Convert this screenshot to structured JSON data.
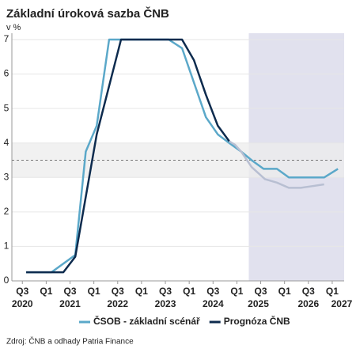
{
  "chart_data": {
    "type": "line",
    "title": "Základní úroková sazba ČNB",
    "subtitle": "v %",
    "source": "Zdroj: ČNB a odhady Patria Finance",
    "xlim": [
      2020.28,
      2027.25
    ],
    "xticks": [
      {
        "value": 2020.5,
        "label": "Q3"
      },
      {
        "value": 2021.0,
        "label": "Q1"
      },
      {
        "value": 2021.5,
        "label": "Q3"
      },
      {
        "value": 2022.0,
        "label": "Q1"
      },
      {
        "value": 2022.5,
        "label": "Q3"
      },
      {
        "value": 2023.0,
        "label": "Q1"
      },
      {
        "value": 2023.5,
        "label": "Q3"
      },
      {
        "value": 2024.0,
        "label": "Q1"
      },
      {
        "value": 2024.5,
        "label": "Q3"
      },
      {
        "value": 2025.0,
        "label": "Q1"
      },
      {
        "value": 2025.5,
        "label": "Q3"
      },
      {
        "value": 2026.0,
        "label": "Q1"
      },
      {
        "value": 2026.5,
        "label": "Q3"
      },
      {
        "value": 2027.0,
        "label": "Q1"
      }
    ],
    "year_labels": [
      {
        "value": 2020.5,
        "label": "2020"
      },
      {
        "value": 2021.5,
        "label": "2021"
      },
      {
        "value": 2022.5,
        "label": "2022"
      },
      {
        "value": 2023.5,
        "label": "2023"
      },
      {
        "value": 2024.5,
        "label": "2024"
      },
      {
        "value": 2025.45,
        "label": "2025"
      },
      {
        "value": 2026.5,
        "label": "2026"
      },
      {
        "value": 2027.2,
        "label": "2027"
      }
    ],
    "ylim": [
      0,
      7
    ],
    "yticks": [
      0,
      1,
      2,
      3,
      4,
      5,
      6,
      7
    ],
    "grid": true,
    "forecast_region": [
      2025.25,
      2027.25
    ],
    "forecast_color": "#e1e1ee",
    "band": [
      3,
      4
    ],
    "band_color": "#ececec",
    "reference_line": 3.5,
    "series": [
      {
        "name": "ČSOB - základní scénář",
        "color": "#5ba8c9",
        "x": [
          2020.58,
          2021.11,
          2021.61,
          2021.83,
          2022.06,
          2022.32,
          2023.57,
          2023.85,
          2024.35,
          2024.6,
          2024.84,
          2025.09,
          2025.31,
          2025.56,
          2025.84,
          2026.09,
          2026.34,
          2026.83,
          2027.12
        ],
        "values": [
          0.25,
          0.25,
          0.75,
          3.75,
          4.5,
          7,
          7,
          6.75,
          4.75,
          4.25,
          4.0,
          3.75,
          3.5,
          3.25,
          3.25,
          3.0,
          3.0,
          3.0,
          3.25
        ]
      },
      {
        "name": "Prognóza ČNB",
        "color": "#0d2b4e",
        "x": [
          2020.58,
          2021.36,
          2021.61,
          2022.06,
          2022.57,
          2023.6,
          2023.85,
          2024.1,
          2024.35,
          2024.6,
          2024.84
        ],
        "values": [
          0.25,
          0.25,
          0.7,
          4.25,
          7,
          7,
          7,
          6.4,
          5.4,
          4.5,
          4.05
        ]
      },
      {
        "color": "#b8bfd2",
        "x": [
          2024.84,
          2024.96,
          2025.09,
          2025.31,
          2025.59,
          2025.84,
          2026.09,
          2026.34,
          2026.59,
          2026.83
        ],
        "values": [
          4.05,
          3.95,
          3.75,
          3.3,
          2.95,
          2.85,
          2.7,
          2.7,
          2.75,
          2.8
        ]
      }
    ]
  }
}
